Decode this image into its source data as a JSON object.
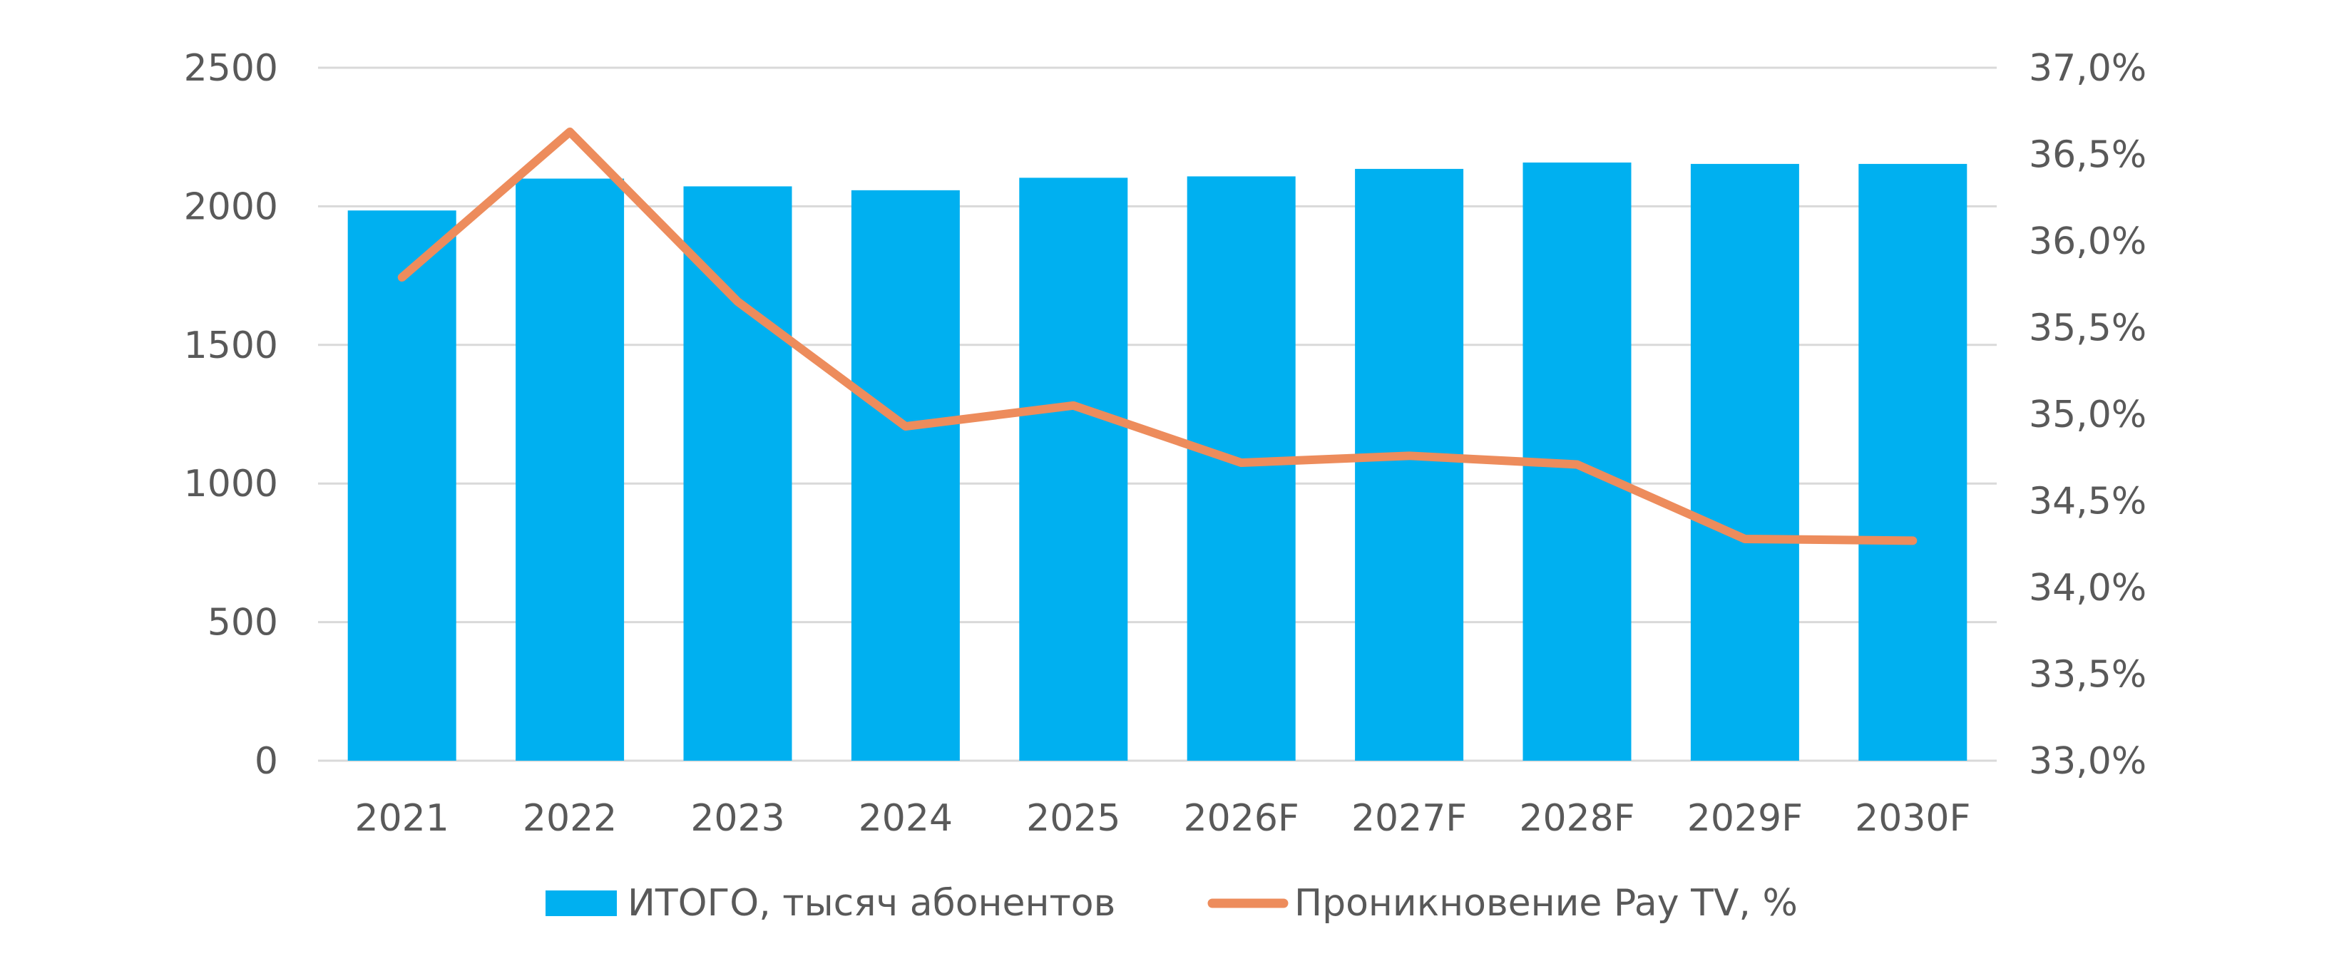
{
  "chart_data": {
    "type": "bar",
    "categories": [
      "2021",
      "2022",
      "2023",
      "2024",
      "2025",
      "2026F",
      "2027F",
      "2028F",
      "2029F",
      "2030F"
    ],
    "series": [
      {
        "name": "ИТОГО, тысяч абонентов",
        "type": "bar",
        "axis": "left",
        "color": "#00B0F0",
        "values": [
          1985,
          2100,
          2072,
          2058,
          2103,
          2108,
          2135,
          2158,
          2153,
          2153
        ]
      },
      {
        "name": "Проникновение Pay TV, %",
        "type": "line",
        "axis": "right",
        "color": "#ED8C5C",
        "values": [
          35.79,
          36.63,
          35.65,
          34.93,
          35.05,
          34.72,
          34.76,
          34.71,
          34.28,
          34.27
        ]
      }
    ],
    "y_left": {
      "min": 0,
      "max": 2500,
      "ticks": [
        0,
        500,
        1000,
        1500,
        2000,
        2500
      ],
      "tick_labels": [
        "0",
        "500",
        "1000",
        "1500",
        "2000",
        "2500"
      ]
    },
    "y_right": {
      "min": 33.0,
      "max": 37.0,
      "ticks": [
        33.0,
        33.5,
        34.0,
        34.5,
        35.0,
        35.5,
        36.0,
        36.5,
        37.0
      ],
      "tick_labels": [
        "33,0%",
        "33,5%",
        "34,0%",
        "34,5%",
        "35,0%",
        "35,5%",
        "36,0%",
        "36,5%",
        "37,0%"
      ]
    },
    "grid": true,
    "legend_position": "bottom",
    "gridline_color": "#D9D9D9"
  }
}
